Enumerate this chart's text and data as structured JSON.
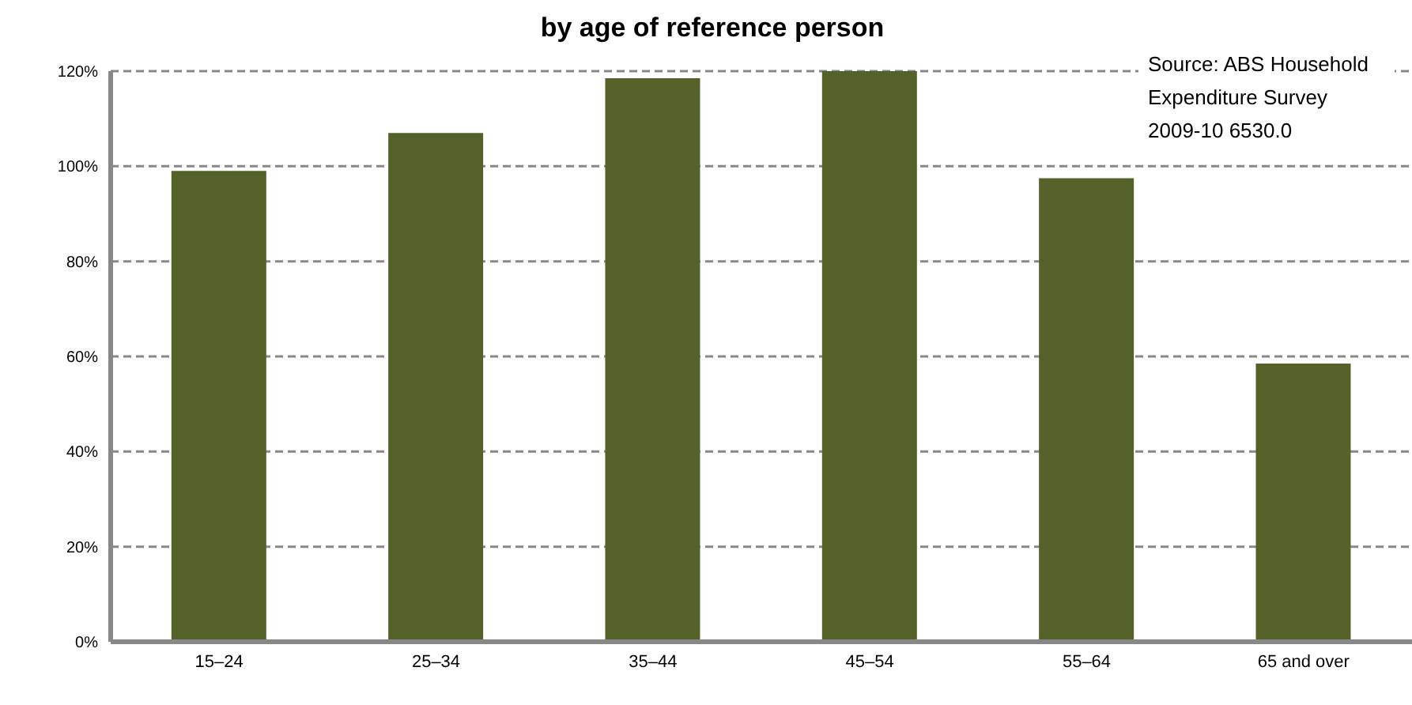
{
  "chart_data": {
    "type": "bar",
    "title": "by age of reference person",
    "categories": [
      "15–24",
      "25–34",
      "35–44",
      "45–54",
      "55–64",
      "65 and over"
    ],
    "values": [
      99,
      107,
      118.5,
      120,
      97.5,
      58.5
    ],
    "color": "#546129",
    "ylim": [
      0,
      120
    ],
    "yticks": [
      {
        "value": 0,
        "label": "0%"
      },
      {
        "value": 20,
        "label": "20%"
      },
      {
        "value": 40,
        "label": "40%"
      },
      {
        "value": 60,
        "label": "60%"
      },
      {
        "value": 80,
        "label": "80%"
      },
      {
        "value": 100,
        "label": "100%"
      },
      {
        "value": 120,
        "label": "120%"
      }
    ],
    "grid": "y",
    "annotations": [
      "Source: ABS Household Expenditure Survey 2009-10 6530.0"
    ]
  }
}
